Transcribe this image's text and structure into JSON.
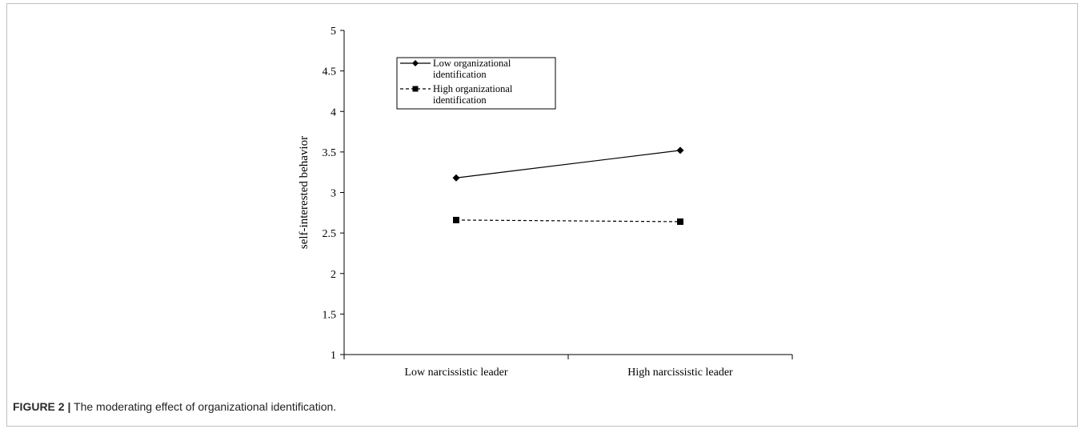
{
  "chart_data": {
    "type": "line",
    "categories": [
      "Low narcissistic leader",
      "High narcissistic leader"
    ],
    "series": [
      {
        "name": "Low organizational identification",
        "values": [
          3.18,
          3.52
        ],
        "marker": "diamond",
        "dash": "solid",
        "color": "#000000"
      },
      {
        "name": "High organizational identification",
        "values": [
          2.66,
          2.64
        ],
        "marker": "square",
        "dash": "dashed",
        "color": "#000000"
      }
    ],
    "xlabel": "",
    "ylabel": "self-interested behavior",
    "ylim": [
      1,
      5
    ],
    "yticks": [
      1,
      1.5,
      2,
      2.5,
      3,
      3.5,
      4,
      4.5,
      5
    ],
    "legend_position": "top-left",
    "grid": false
  },
  "caption": {
    "label": "FIGURE 2 |",
    "text": " The moderating effect of organizational identification."
  }
}
